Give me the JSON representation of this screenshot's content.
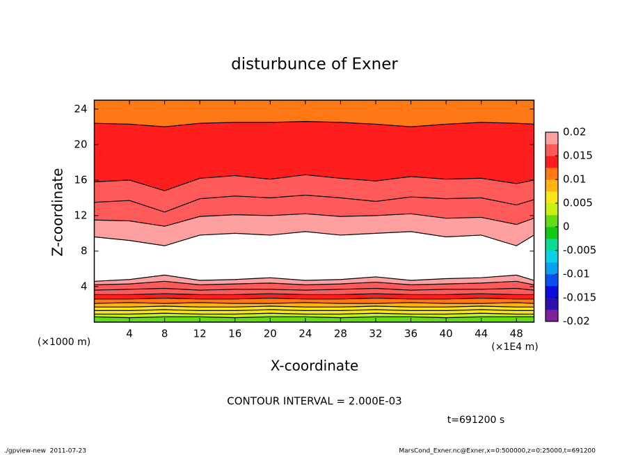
{
  "chart_data": {
    "type": "contour",
    "title": "disturbunce of Exner",
    "xlabel": "X-coordinate",
    "ylabel": "Z-coordinate",
    "x_unit": "(×1E4 m)",
    "y_unit": "(×1000 m)",
    "annotation": "CONTOUR INTERVAL = 2.000E-03",
    "time_label": "t=691200 s",
    "footer_left": "./gpview-new  2011-07-23",
    "footer_right": "MarsCond_Exner.nc@Exner,x=0:500000,z=0:25000,t=691200",
    "xlim": [
      0,
      50
    ],
    "xticks": [
      4,
      8,
      12,
      16,
      20,
      24,
      28,
      32,
      36,
      40,
      44,
      48
    ],
    "ylim": [
      0,
      25
    ],
    "yticks": [
      4,
      8,
      12,
      16,
      20,
      24
    ],
    "colorbar": {
      "clim": [
        -0.02,
        0.02
      ],
      "ticks": [
        0.02,
        0.015,
        0.01,
        0.005,
        0,
        -0.005,
        -0.01,
        -0.015,
        -0.02
      ],
      "colors": [
        "#80209c",
        "#3010b0",
        "#0c0cdc",
        "#0a50f0",
        "#0aa0f0",
        "#0ad2e6",
        "#0adc96",
        "#14c814",
        "#64dc14",
        "#c8f014",
        "#fae614",
        "#ffb414",
        "#ff7814",
        "#ff1e1e",
        "#ff5a5a",
        "#ffa0a0"
      ],
      "over_color": "#ffffff"
    },
    "x": [
      0,
      4,
      8,
      12,
      16,
      20,
      24,
      28,
      32,
      36,
      40,
      44,
      48,
      50
    ],
    "contours": [
      {
        "value": 0.002,
        "z": [
          0.6,
          0.5,
          0.6,
          0.6,
          0.5,
          0.6,
          0.6,
          0.5,
          0.6,
          0.6,
          0.5,
          0.6,
          0.6,
          0.6
        ]
      },
      {
        "value": 0.004,
        "z": [
          0.9,
          0.9,
          1.0,
          0.9,
          0.9,
          1.0,
          0.9,
          0.9,
          1.0,
          0.9,
          0.9,
          1.0,
          0.9,
          0.9
        ]
      },
      {
        "value": 0.006,
        "z": [
          1.3,
          1.3,
          1.4,
          1.3,
          1.3,
          1.4,
          1.3,
          1.3,
          1.4,
          1.3,
          1.3,
          1.4,
          1.3,
          1.3
        ]
      },
      {
        "value": 0.008,
        "z": [
          1.7,
          1.7,
          1.8,
          1.7,
          1.7,
          1.8,
          1.7,
          1.7,
          1.8,
          1.7,
          1.7,
          1.8,
          1.7,
          1.7
        ]
      },
      {
        "value": 0.01,
        "z": [
          2.1,
          2.2,
          2.1,
          2.2,
          2.1,
          2.1,
          2.2,
          2.1,
          2.1,
          2.2,
          2.1,
          2.1,
          2.2,
          2.1
        ]
      },
      {
        "value": 0.012,
        "z": [
          2.6,
          2.6,
          2.7,
          2.6,
          2.6,
          2.7,
          2.6,
          2.6,
          2.7,
          2.6,
          2.6,
          2.7,
          2.6,
          2.6
        ]
      },
      {
        "value": 0.014,
        "z": [
          3.1,
          3.1,
          3.2,
          3.1,
          3.1,
          3.2,
          3.1,
          3.1,
          3.2,
          3.1,
          3.1,
          3.2,
          3.1,
          3.1
        ]
      },
      {
        "value": 0.016,
        "z": [
          3.6,
          3.7,
          3.8,
          3.6,
          3.7,
          3.7,
          3.6,
          3.7,
          3.8,
          3.6,
          3.7,
          3.7,
          3.8,
          3.6
        ]
      },
      {
        "value": 0.018,
        "z": [
          4.2,
          4.3,
          4.6,
          4.2,
          4.3,
          4.4,
          4.2,
          4.3,
          4.5,
          4.2,
          4.3,
          4.4,
          4.6,
          4.2
        ]
      },
      {
        "value": 0.02,
        "z": [
          4.6,
          4.8,
          5.3,
          4.7,
          4.8,
          5.0,
          4.7,
          4.8,
          5.1,
          4.7,
          4.9,
          5.0,
          5.3,
          4.7
        ]
      },
      {
        "value": 0.02,
        "z": [
          9.6,
          9.2,
          8.6,
          9.8,
          10.0,
          9.8,
          10.2,
          9.8,
          10.0,
          10.2,
          9.6,
          9.8,
          8.6,
          9.8
        ]
      },
      {
        "value": 0.018,
        "z": [
          11.5,
          11.4,
          10.8,
          11.9,
          12.1,
          12.0,
          12.2,
          11.9,
          12.0,
          12.2,
          11.7,
          11.8,
          11.0,
          11.7
        ]
      },
      {
        "value": 0.016,
        "z": [
          13.5,
          13.7,
          12.4,
          13.9,
          14.2,
          14.0,
          14.3,
          14.0,
          13.6,
          14.1,
          13.9,
          14.0,
          13.2,
          13.8
        ]
      },
      {
        "value": 0.014,
        "z": [
          15.8,
          16.0,
          14.8,
          16.2,
          16.5,
          16.1,
          16.6,
          16.2,
          15.9,
          16.4,
          16.1,
          16.2,
          15.6,
          16.0
        ]
      },
      {
        "value": 0.012,
        "z": [
          22.4,
          22.3,
          22.0,
          22.4,
          22.5,
          22.5,
          22.6,
          22.5,
          22.3,
          22.0,
          22.3,
          22.5,
          22.4,
          22.3
        ]
      }
    ]
  }
}
